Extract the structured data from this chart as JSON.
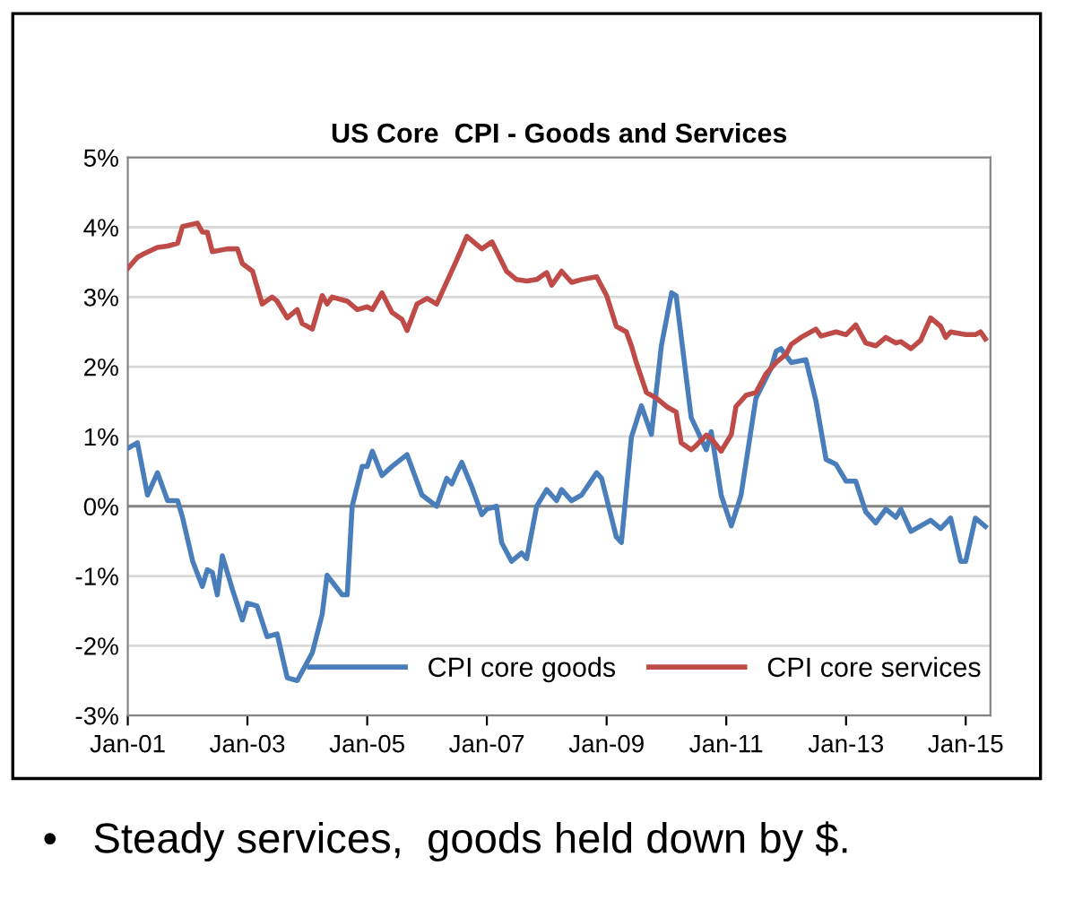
{
  "chart_data": {
    "type": "line",
    "title": "US Core  CPI - Goods and Services",
    "xlim": [
      "2001-01",
      "2015-06"
    ],
    "xticks": [
      {
        "value": "2001-01",
        "label": "Jan-01"
      },
      {
        "value": "2003-01",
        "label": "Jan-03"
      },
      {
        "value": "2005-01",
        "label": "Jan-05"
      },
      {
        "value": "2007-01",
        "label": "Jan-07"
      },
      {
        "value": "2009-01",
        "label": "Jan-09"
      },
      {
        "value": "2011-01",
        "label": "Jan-11"
      },
      {
        "value": "2013-01",
        "label": "Jan-13"
      },
      {
        "value": "2015-01",
        "label": "Jan-15"
      }
    ],
    "ylim": [
      -3,
      5
    ],
    "yticks": [
      {
        "value": -3,
        "label": "-3%"
      },
      {
        "value": -2,
        "label": "-2%"
      },
      {
        "value": -1,
        "label": "-1%"
      },
      {
        "value": 0,
        "label": "0%"
      },
      {
        "value": 1,
        "label": "1%"
      },
      {
        "value": 2,
        "label": "2%"
      },
      {
        "value": 3,
        "label": "3%"
      },
      {
        "value": 4,
        "label": "4%"
      },
      {
        "value": 5,
        "label": "5%"
      }
    ],
    "grid": "y",
    "legend": "bottom",
    "marker": "none",
    "line_style": "solid",
    "ref_lines": [
      {
        "axis": "y",
        "value": 0,
        "label": null,
        "color": "#868686"
      }
    ],
    "annotations": [
      "•   Steady services,  goods held down by $."
    ],
    "series": [
      {
        "name": "CPI core goods",
        "color": "#4a7ebb",
        "x": [
          "2001-01",
          "2001-03",
          "2001-05",
          "2001-07",
          "2001-09",
          "2001-11",
          "2001-12",
          "2002-02",
          "2002-04",
          "2002-05",
          "2002-06",
          "2002-07",
          "2002-08",
          "2002-10",
          "2002-12",
          "2003-01",
          "2003-03",
          "2003-05",
          "2003-07",
          "2003-09",
          "2003-11",
          "2004-02",
          "2004-04",
          "2004-05",
          "2004-08",
          "2004-09",
          "2004-10",
          "2004-12",
          "2005-01",
          "2005-02",
          "2005-04",
          "2005-06",
          "2005-09",
          "2005-12",
          "2006-03",
          "2006-05",
          "2006-06",
          "2006-07",
          "2006-08",
          "2006-10",
          "2006-12",
          "2007-01",
          "2007-03",
          "2007-04",
          "2007-06",
          "2007-08",
          "2007-09",
          "2007-11",
          "2008-01",
          "2008-03",
          "2008-04",
          "2008-06",
          "2008-08",
          "2008-11",
          "2008-12",
          "2009-03",
          "2009-04",
          "2009-06",
          "2009-08",
          "2009-10",
          "2009-12",
          "2010-02",
          "2010-03",
          "2010-06",
          "2010-09",
          "2010-10",
          "2010-12",
          "2011-02",
          "2011-04",
          "2011-07",
          "2011-10",
          "2011-11",
          "2011-12",
          "2012-02",
          "2012-05",
          "2012-07",
          "2012-09",
          "2012-11",
          "2013-01",
          "2013-03",
          "2013-05",
          "2013-07",
          "2013-09",
          "2013-11",
          "2013-12",
          "2014-02",
          "2014-06",
          "2014-08",
          "2014-10",
          "2014-12",
          "2015-01",
          "2015-03",
          "2015-05"
        ],
        "values": [
          0.83,
          0.91,
          0.16,
          0.48,
          0.08,
          0.08,
          -0.16,
          -0.79,
          -1.15,
          -0.91,
          -0.95,
          -1.27,
          -0.71,
          -1.19,
          -1.63,
          -1.39,
          -1.43,
          -1.87,
          -1.83,
          -2.46,
          -2.5,
          -2.1,
          -1.55,
          -0.99,
          -1.27,
          -1.27,
          0.0,
          0.57,
          0.57,
          0.79,
          0.44,
          0.57,
          0.74,
          0.16,
          0.0,
          0.4,
          0.32,
          0.48,
          0.63,
          0.28,
          -0.12,
          -0.04,
          0.0,
          -0.52,
          -0.79,
          -0.67,
          -0.75,
          0.0,
          0.24,
          0.08,
          0.24,
          0.08,
          0.16,
          0.48,
          0.4,
          -0.44,
          -0.52,
          0.99,
          1.44,
          1.03,
          2.3,
          3.06,
          3.02,
          1.27,
          0.81,
          1.07,
          0.16,
          -0.28,
          0.16,
          1.55,
          1.98,
          2.22,
          2.26,
          2.06,
          2.1,
          1.51,
          0.67,
          0.6,
          0.36,
          0.36,
          -0.08,
          -0.24,
          -0.04,
          -0.16,
          -0.04,
          -0.36,
          -0.2,
          -0.32,
          -0.17,
          -0.79,
          -0.79,
          -0.17,
          -0.29
        ]
      },
      {
        "name": "CPI core services",
        "color": "#be4b48",
        "x": [
          "2001-01",
          "2001-03",
          "2001-04",
          "2001-07",
          "2001-09",
          "2001-11",
          "2001-12",
          "2002-03",
          "2002-04",
          "2002-05",
          "2002-06",
          "2002-09",
          "2002-11",
          "2002-12",
          "2003-02",
          "2003-04",
          "2003-06",
          "2003-07",
          "2003-09",
          "2003-11",
          "2003-12",
          "2004-02",
          "2004-04",
          "2004-05",
          "2004-06",
          "2004-09",
          "2004-11",
          "2005-01",
          "2005-02",
          "2005-04",
          "2005-06",
          "2005-08",
          "2005-09",
          "2005-11",
          "2006-01",
          "2006-03",
          "2006-07",
          "2006-09",
          "2006-12",
          "2007-02",
          "2007-05",
          "2007-07",
          "2007-09",
          "2007-11",
          "2008-01",
          "2008-02",
          "2008-04",
          "2008-05",
          "2008-06",
          "2008-08",
          "2008-11",
          "2009-01",
          "2009-03",
          "2009-05",
          "2009-06",
          "2009-07",
          "2009-09",
          "2009-11",
          "2010-01",
          "2010-03",
          "2010-04",
          "2010-06",
          "2010-07",
          "2010-09",
          "2010-10",
          "2010-12",
          "2011-02",
          "2011-03",
          "2011-05",
          "2011-07",
          "2011-09",
          "2011-11",
          "2012-01",
          "2012-02",
          "2012-04",
          "2012-07",
          "2012-08",
          "2012-11",
          "2013-01",
          "2013-03",
          "2013-05",
          "2013-07",
          "2013-09",
          "2013-11",
          "2013-12",
          "2014-02",
          "2014-04",
          "2014-06",
          "2014-08",
          "2014-09",
          "2014-10",
          "2015-01",
          "2015-03",
          "2015-04",
          "2015-05"
        ],
        "values": [
          3.41,
          3.57,
          3.61,
          3.71,
          3.73,
          3.77,
          4.01,
          4.06,
          3.93,
          3.93,
          3.65,
          3.69,
          3.69,
          3.48,
          3.37,
          2.9,
          3.0,
          2.94,
          2.7,
          2.82,
          2.62,
          2.54,
          3.02,
          2.9,
          3.0,
          2.94,
          2.82,
          2.86,
          2.82,
          3.06,
          2.78,
          2.68,
          2.52,
          2.9,
          2.98,
          2.9,
          3.53,
          3.87,
          3.69,
          3.79,
          3.37,
          3.25,
          3.23,
          3.25,
          3.35,
          3.17,
          3.37,
          3.29,
          3.21,
          3.25,
          3.29,
          3.02,
          2.58,
          2.5,
          2.3,
          2.06,
          1.63,
          1.55,
          1.43,
          1.35,
          0.91,
          0.81,
          0.87,
          1.02,
          0.97,
          0.79,
          1.03,
          1.43,
          1.59,
          1.63,
          1.9,
          2.06,
          2.18,
          2.32,
          2.42,
          2.54,
          2.44,
          2.5,
          2.46,
          2.6,
          2.34,
          2.3,
          2.42,
          2.34,
          2.36,
          2.26,
          2.38,
          2.7,
          2.58,
          2.42,
          2.5,
          2.46,
          2.46,
          2.5,
          2.4
        ]
      }
    ]
  }
}
